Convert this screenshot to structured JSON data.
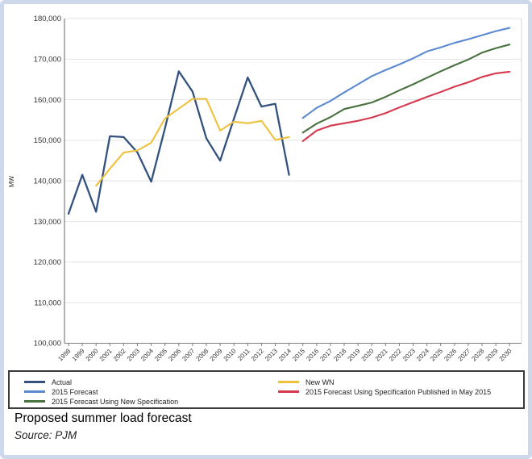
{
  "caption": {
    "title": "Proposed summer load forecast",
    "source": "Source: PJM"
  },
  "chart_data": {
    "type": "line",
    "title": "Proposed summer load forecast",
    "xlabel": "",
    "ylabel": "MW",
    "xlim": [
      1998,
      2030
    ],
    "ylim": [
      100000,
      180000
    ],
    "grid": "horizontal",
    "legend_position": "bottom-box-two-columns",
    "y_ticks": [
      "100,000",
      "110,000",
      "120,000",
      "130,000",
      "140,000",
      "150,000",
      "160,000",
      "170,000",
      "180,000"
    ],
    "x_ticks": [
      1998,
      1999,
      2000,
      2001,
      2002,
      2003,
      2004,
      2005,
      2006,
      2007,
      2008,
      2009,
      2010,
      2011,
      2012,
      2013,
      2014,
      2015,
      2016,
      2017,
      2018,
      2019,
      2020,
      2021,
      2022,
      2023,
      2024,
      2025,
      2026,
      2027,
      2028,
      2029,
      2030
    ],
    "colors": {
      "grid": "#e4e4e4",
      "axis": "#7f7f7f",
      "text": "#333333",
      "frame_border": "#cdd9ea",
      "legend_border": "#3a3a3a"
    },
    "series": [
      {
        "name": "Actual",
        "color": "#33527e",
        "width": 2.3,
        "start_year": 1998,
        "values": [
          131900,
          141500,
          132400,
          151000,
          150800,
          147000,
          139800,
          153000,
          167000,
          162000,
          150500,
          145000,
          155300,
          165500,
          158300,
          159000,
          141500
        ]
      },
      {
        "name": "2015 Forecast",
        "color": "#5b8ad1",
        "width": 2.1,
        "start_year": 2015,
        "values": [
          155500,
          158000,
          159700,
          161800,
          163800,
          165800,
          167300,
          168700,
          170200,
          171900,
          172900,
          174000,
          174900,
          175900,
          176900,
          177700
        ]
      },
      {
        "name": "2015 Forecast Using New Specification",
        "color": "#4a7240",
        "width": 2.1,
        "start_year": 2015,
        "values": [
          151900,
          154100,
          155700,
          157700,
          158500,
          159300,
          160700,
          162300,
          163800,
          165400,
          167000,
          168500,
          169900,
          171600,
          172700,
          173600
        ]
      },
      {
        "name": "New WN",
        "color": "#eec13d",
        "width": 2.1,
        "start_year": 2000,
        "values": [
          138800,
          143000,
          147000,
          147500,
          149400,
          155400,
          157800,
          160200,
          160200,
          152400,
          154600,
          154200,
          154800,
          150100,
          150800
        ]
      },
      {
        "name": "2015 Forecast Using Specification Published in May 2015",
        "color": "#d6394e",
        "width": 2.1,
        "start_year": 2015,
        "values": [
          149800,
          152400,
          153600,
          154200,
          154800,
          155600,
          156700,
          158100,
          159400,
          160700,
          161900,
          163200,
          164300,
          165600,
          166500,
          166900
        ]
      }
    ]
  }
}
